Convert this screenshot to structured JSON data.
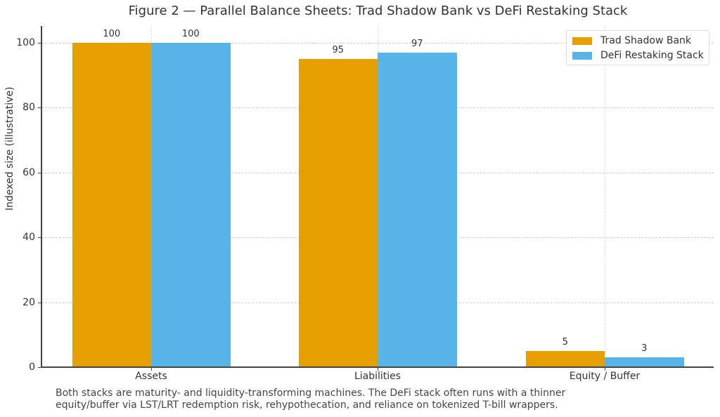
{
  "chart_data": {
    "type": "bar",
    "title": "Figure 2 — Parallel Balance Sheets: Trad Shadow Bank vs DeFi Restaking Stack",
    "xlabel": "",
    "ylabel": "Indexed size (illustrative)",
    "categories": [
      "Assets",
      "Liabilities",
      "Equity / Buffer"
    ],
    "series": [
      {
        "name": "Trad Shadow Bank",
        "color": "#E69F00",
        "values": [
          100,
          95,
          5
        ]
      },
      {
        "name": "DeFi Restaking Stack",
        "color": "#56B4E9",
        "values": [
          100,
          97,
          3
        ]
      }
    ],
    "ylim": [
      0,
      105
    ],
    "yticks": [
      0,
      20,
      40,
      60,
      80,
      100
    ],
    "grid": true,
    "legend_position": "upper right",
    "data_labels": [
      "100",
      "100",
      "95",
      "97",
      "5",
      "3"
    ]
  },
  "caption": {
    "line1": "Both stacks are maturity- and liquidity-transforming machines. The DeFi stack often runs with a thinner",
    "line2": "equity/buffer via LST/LRT redemption risk, rehypothecation, and reliance on tokenized T-bill wrappers."
  }
}
